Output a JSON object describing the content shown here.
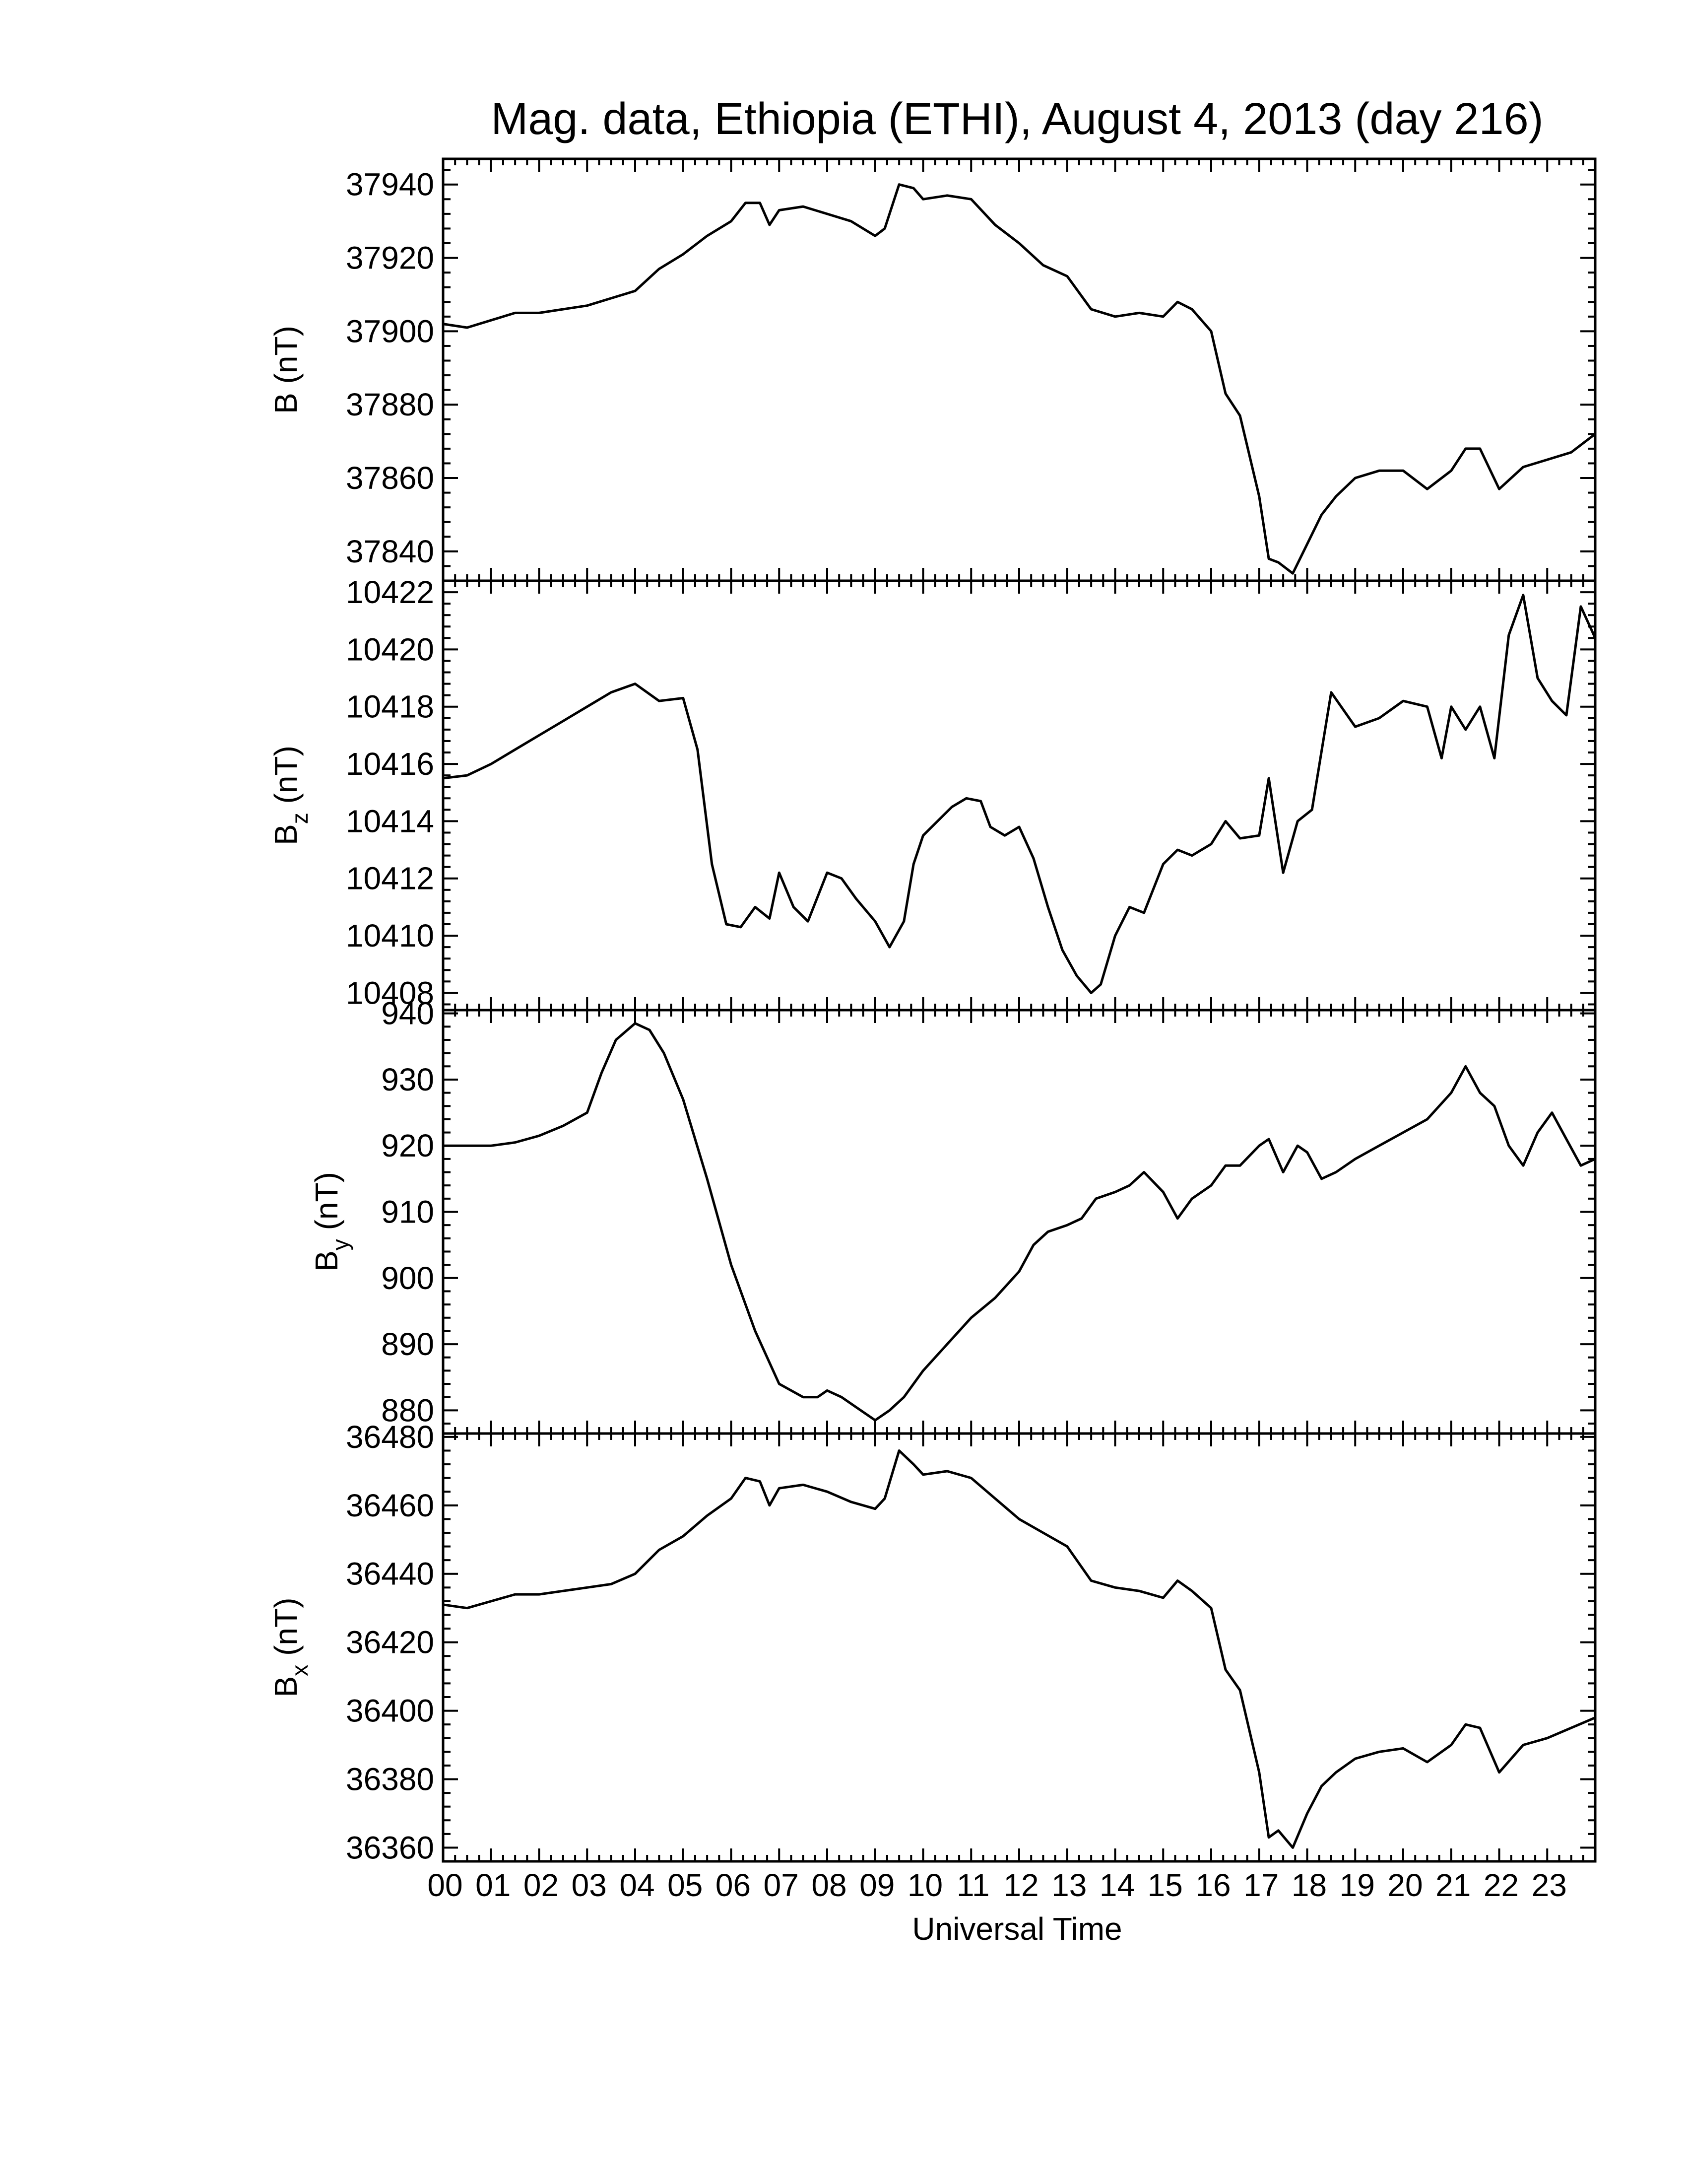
{
  "title": "Mag. data, Ethiopia (ETHI), August 4, 2013 (day 216)",
  "chart_data": [
    {
      "type": "line",
      "panel": "B",
      "ylabel": "B (nT)",
      "ylabel_main": "B",
      "ylabel_sub": "",
      "ylabel_unit": "(nT)",
      "ylim": [
        37832,
        37947
      ],
      "yticks": [
        37840,
        37860,
        37880,
        37900,
        37920,
        37940
      ],
      "x": [
        0,
        0.5,
        1,
        1.5,
        2,
        2.5,
        3,
        3.5,
        4,
        4.5,
        5,
        5.5,
        6,
        6.3,
        6.6,
        6.8,
        7,
        7.5,
        8,
        8.5,
        9,
        9.2,
        9.5,
        9.8,
        10,
        10.5,
        11,
        11.5,
        12,
        12.5,
        13,
        13.5,
        14,
        14.5,
        15,
        15.3,
        15.6,
        16,
        16.3,
        16.6,
        17,
        17.2,
        17.4,
        17.7,
        18,
        18.3,
        18.6,
        19,
        19.5,
        20,
        20.5,
        21,
        21.3,
        21.6,
        22,
        22.5,
        23,
        23.5,
        24
      ],
      "values": [
        37902,
        37901,
        37903,
        37905,
        37905,
        37906,
        37907,
        37909,
        37911,
        37917,
        37921,
        37926,
        37930,
        37935,
        37935,
        37929,
        37933,
        37934,
        37932,
        37930,
        37926,
        37928,
        37940,
        37939,
        37936,
        37937,
        37936,
        37929,
        37924,
        37918,
        37915,
        37906,
        37904,
        37905,
        37904,
        37908,
        37906,
        37900,
        37883,
        37877,
        37855,
        37838,
        37837,
        37834,
        37842,
        37850,
        37855,
        37860,
        37862,
        37862,
        37857,
        37862,
        37868,
        37868,
        37857,
        37863,
        37865,
        37867,
        37872
      ]
    },
    {
      "type": "line",
      "panel": "Bz",
      "ylabel": "Bz (nT)",
      "ylabel_main": "B",
      "ylabel_sub": "z",
      "ylabel_unit": "(nT)",
      "ylim": [
        10407.4,
        10422.4
      ],
      "yticks": [
        10408,
        10410,
        10412,
        10414,
        10416,
        10418,
        10420,
        10422
      ],
      "x": [
        0,
        0.5,
        1,
        1.5,
        2,
        2.5,
        3,
        3.5,
        4,
        4.5,
        5,
        5.3,
        5.6,
        5.9,
        6.2,
        6.5,
        6.8,
        7,
        7.3,
        7.6,
        8,
        8.3,
        8.6,
        9,
        9.3,
        9.6,
        9.8,
        10,
        10.3,
        10.6,
        10.9,
        11.2,
        11.4,
        11.7,
        12,
        12.3,
        12.6,
        12.9,
        13.2,
        13.5,
        13.7,
        14,
        14.3,
        14.6,
        15,
        15.3,
        15.6,
        16,
        16.3,
        16.6,
        17,
        17.2,
        17.5,
        17.8,
        18.1,
        18.5,
        19,
        19.5,
        20,
        20.5,
        20.8,
        21,
        21.3,
        21.6,
        21.9,
        22.2,
        22.5,
        22.8,
        23.1,
        23.4,
        23.7,
        24
      ],
      "values": [
        10415.5,
        10415.6,
        10416,
        10416.5,
        10417,
        10417.5,
        10418,
        10418.5,
        10418.8,
        10418.2,
        10418.3,
        10416.5,
        10412.5,
        10410.4,
        10410.3,
        10411,
        10410.6,
        10412.2,
        10411,
        10410.5,
        10412.2,
        10412,
        10411.3,
        10410.5,
        10409.6,
        10410.5,
        10412.5,
        10413.5,
        10414,
        10414.5,
        10414.8,
        10414.7,
        10413.8,
        10413.5,
        10413.8,
        10412.7,
        10411,
        10409.5,
        10408.6,
        10408,
        10408.3,
        10410,
        10411,
        10410.8,
        10412.5,
        10413,
        10412.8,
        10413.2,
        10414,
        10413.4,
        10413.5,
        10415.5,
        10412.2,
        10414,
        10414.4,
        10418.5,
        10417.3,
        10417.6,
        10418.2,
        10418,
        10416.2,
        10418,
        10417.2,
        10418,
        10416.2,
        10420.5,
        10421.9,
        10419,
        10418.2,
        10417.7,
        10421.5,
        10420.4
      ]
    },
    {
      "type": "line",
      "panel": "By",
      "ylabel": "By (nT)",
      "ylabel_main": "B",
      "ylabel_sub": "y",
      "ylabel_unit": "(nT)",
      "ylim": [
        876.5,
        940.5
      ],
      "yticks": [
        880,
        890,
        900,
        910,
        920,
        930,
        940
      ],
      "x": [
        0,
        0.5,
        1,
        1.5,
        2,
        2.5,
        3,
        3.3,
        3.6,
        4,
        4.3,
        4.6,
        5,
        5.5,
        6,
        6.5,
        7,
        7.5,
        7.8,
        8,
        8.3,
        8.6,
        9,
        9.3,
        9.6,
        10,
        10.5,
        11,
        11.5,
        12,
        12.3,
        12.6,
        13,
        13.3,
        13.6,
        14,
        14.3,
        14.6,
        15,
        15.3,
        15.6,
        16,
        16.3,
        16.6,
        17,
        17.2,
        17.5,
        17.8,
        18,
        18.3,
        18.6,
        19,
        19.5,
        20,
        20.5,
        21,
        21.3,
        21.6,
        21.9,
        22.2,
        22.5,
        22.8,
        23.1,
        23.4,
        23.7,
        24
      ],
      "values": [
        920,
        920,
        920,
        920.5,
        921.5,
        923,
        925,
        931,
        936,
        938.5,
        937.5,
        934,
        927,
        915,
        902,
        892,
        884,
        882,
        882,
        883,
        882,
        880.5,
        878.5,
        880,
        882,
        886,
        890,
        894,
        897,
        901,
        905,
        907,
        908,
        909,
        912,
        913,
        914,
        916,
        913,
        909,
        912,
        914,
        917,
        917,
        920,
        921,
        916,
        920,
        919,
        915,
        916,
        918,
        920,
        922,
        924,
        928,
        932,
        928,
        926,
        920,
        917,
        922,
        925,
        921,
        917,
        918
      ]
    },
    {
      "type": "line",
      "panel": "Bx",
      "ylabel": "Bx (nT)",
      "ylabel_main": "B",
      "ylabel_sub": "x",
      "ylabel_unit": "(nT)",
      "ylim": [
        36356,
        36481
      ],
      "yticks": [
        36360,
        36380,
        36400,
        36420,
        36440,
        36460,
        36480
      ],
      "x": [
        0,
        0.5,
        1,
        1.5,
        2,
        2.5,
        3,
        3.5,
        4,
        4.5,
        5,
        5.5,
        6,
        6.3,
        6.6,
        6.8,
        7,
        7.5,
        8,
        8.5,
        9,
        9.2,
        9.5,
        9.8,
        10,
        10.5,
        11,
        11.5,
        12,
        12.5,
        13,
        13.5,
        14,
        14.5,
        15,
        15.3,
        15.6,
        16,
        16.3,
        16.6,
        17,
        17.2,
        17.4,
        17.7,
        18,
        18.3,
        18.6,
        19,
        19.5,
        20,
        20.5,
        21,
        21.3,
        21.6,
        22,
        22.5,
        23,
        23.5,
        24
      ],
      "values": [
        36431,
        36430,
        36432,
        36434,
        36434,
        36435,
        36436,
        36437,
        36440,
        36447,
        36451,
        36457,
        36462,
        36468,
        36467,
        36460,
        36465,
        36466,
        36464,
        36461,
        36459,
        36462,
        36476,
        36472,
        36469,
        36470,
        36468,
        36462,
        36456,
        36452,
        36448,
        36438,
        36436,
        36435,
        36433,
        36438,
        36435,
        36430,
        36412,
        36406,
        36382,
        36363,
        36365,
        36360,
        36370,
        36378,
        36382,
        36386,
        36388,
        36389,
        36385,
        36390,
        36396,
        36395,
        36382,
        36390,
        36392,
        36395,
        36398
      ]
    }
  ],
  "xaxis": {
    "label": "Universal Time",
    "range": [
      0,
      24
    ],
    "tick_labels": [
      "00",
      "01",
      "02",
      "03",
      "04",
      "05",
      "06",
      "07",
      "08",
      "09",
      "10",
      "11",
      "12",
      "13",
      "14",
      "15",
      "16",
      "17",
      "18",
      "19",
      "20",
      "21",
      "22",
      "23"
    ]
  }
}
